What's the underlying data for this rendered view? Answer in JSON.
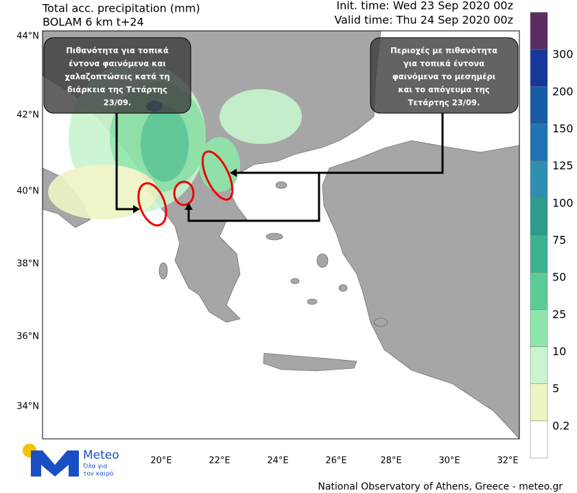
{
  "header": {
    "title": "Total acc. precipitation (mm)",
    "model": "BOLAM 6 km t+24",
    "init_time": "Init. time: Wed 23 Sep 2020 00z",
    "valid_time": "Valid time: Thu 24 Sep 2020 00z"
  },
  "map": {
    "lat_labels": [
      "44°N",
      "42°N",
      "40°N",
      "38°N",
      "36°N",
      "34°N"
    ],
    "lon_labels": [
      "20°E",
      "22°E",
      "24°E",
      "26°E",
      "28°E",
      "30°E",
      "32°E"
    ]
  },
  "annotations": [
    {
      "lines": [
        "Πιθανότητα για τοπικά",
        "έντονα φαινόμενα και",
        "χαλαζοπτώσεις κατά τη",
        "διάρκεια της Τετάρτης",
        "23/09."
      ]
    },
    {
      "lines": [
        "Περιοχές με πιθανότητα",
        "για τοπικά έντονα",
        "φαινόμενα  το μεσημέρι",
        "και το απόγευμα  της",
        "Τετάρτης 23/09."
      ]
    }
  ],
  "colorbar": {
    "levels": [
      0.2,
      5,
      10,
      25,
      50,
      75,
      100,
      125,
      150,
      200,
      300
    ],
    "colors": [
      "#ffffff",
      "#eef5c4",
      "#c8f5cf",
      "#8fe6aa",
      "#5ccc97",
      "#3cb291",
      "#2e9c8c",
      "#2e8fb0",
      "#1f74b3",
      "#185ca3",
      "#15379a",
      "#5c2d61"
    ]
  },
  "logo": {
    "brand": "Meteo",
    "tagline_1": "Όλα για",
    "tagline_2": "τον καιρό"
  },
  "footer": "National Observatory of Athens, Greece - meteo.gr"
}
